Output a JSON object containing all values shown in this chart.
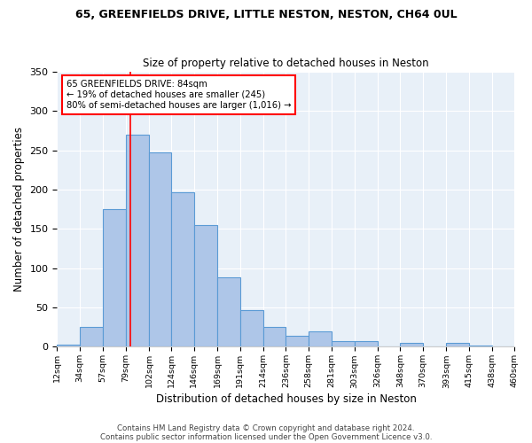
{
  "title1": "65, GREENFIELDS DRIVE, LITTLE NESTON, NESTON, CH64 0UL",
  "title2": "Size of property relative to detached houses in Neston",
  "xlabel": "Distribution of detached houses by size in Neston",
  "ylabel": "Number of detached properties",
  "bar_edges": [
    12,
    34,
    57,
    79,
    102,
    124,
    146,
    169,
    191,
    214,
    236,
    258,
    281,
    303,
    326,
    348,
    370,
    393,
    415,
    438,
    460
  ],
  "bar_heights": [
    3,
    25,
    175,
    270,
    248,
    197,
    155,
    88,
    47,
    25,
    14,
    20,
    7,
    7,
    0,
    5,
    0,
    5,
    2,
    0
  ],
  "bar_color": "#aec6e8",
  "bar_edge_color": "#5b9bd5",
  "bar_linewidth": 0.8,
  "vline_x": 84,
  "vline_color": "red",
  "vline_linewidth": 1.2,
  "annotation_line1": "65 GREENFIELDS DRIVE: 84sqm",
  "annotation_line2": "← 19% of detached houses are smaller (245)",
  "annotation_line3": "80% of semi-detached houses are larger (1,016) →",
  "annotation_box_color": "white",
  "annotation_box_edge": "red",
  "ylim": [
    0,
    350
  ],
  "yticks": [
    0,
    50,
    100,
    150,
    200,
    250,
    300,
    350
  ],
  "background_color": "#e8f0f8",
  "grid_color": "white",
  "footer1": "Contains HM Land Registry data © Crown copyright and database right 2024.",
  "footer2": "Contains public sector information licensed under the Open Government Licence v3.0."
}
